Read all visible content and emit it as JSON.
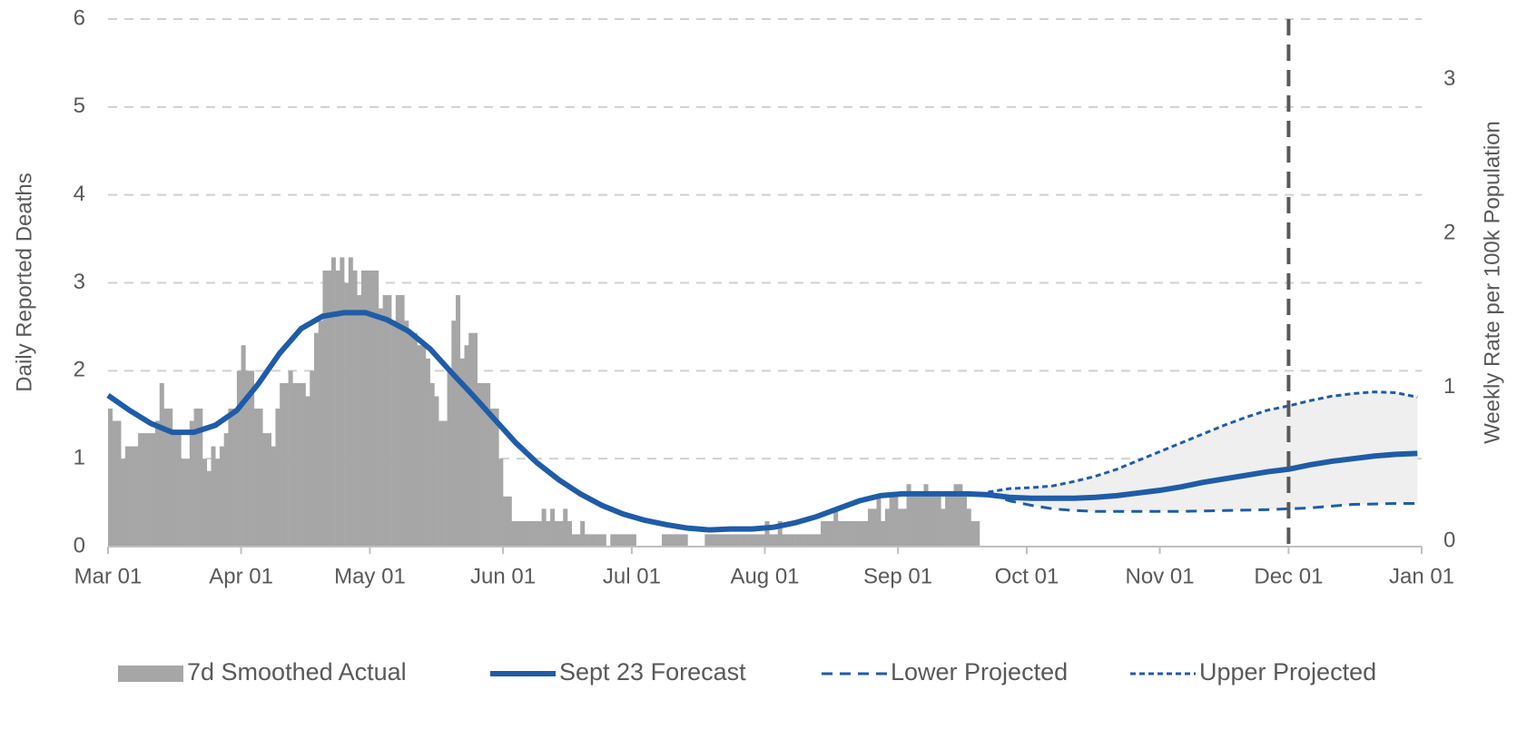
{
  "chart_data": {
    "type": "bar-line",
    "ylabel": "Daily Reported Deaths",
    "y2label": "Weekly Rate per 100k Population",
    "xlim": [
      0,
      306
    ],
    "xticks": [
      {
        "value": 0,
        "label": "Mar 01"
      },
      {
        "value": 31,
        "label": "Apr 01"
      },
      {
        "value": 61,
        "label": "May 01"
      },
      {
        "value": 92,
        "label": "Jun 01"
      },
      {
        "value": 122,
        "label": "Jul 01"
      },
      {
        "value": 153,
        "label": "Aug 01"
      },
      {
        "value": 184,
        "label": "Sep 01"
      },
      {
        "value": 214,
        "label": "Oct 01"
      },
      {
        "value": 245,
        "label": "Nov 01"
      },
      {
        "value": 275,
        "label": "Dec 01"
      },
      {
        "value": 306,
        "label": "Jan 01"
      }
    ],
    "ylim": [
      0,
      6
    ],
    "yticks": [
      0,
      1,
      2,
      3,
      4,
      5,
      6
    ],
    "y2lim": [
      0,
      3.43
    ],
    "y2ticks": [
      0,
      1,
      2,
      3
    ],
    "grid": true,
    "vline": 275,
    "legend": "bottom",
    "series": [
      {
        "name": "7d Smoothed Actual",
        "kind": "bar",
        "color": "#a6a6a6",
        "x": [
          0,
          1,
          2,
          3,
          4,
          5,
          6,
          7,
          8,
          9,
          10,
          11,
          12,
          13,
          14,
          15,
          16,
          17,
          18,
          19,
          20,
          21,
          22,
          23,
          24,
          25,
          26,
          27,
          28,
          29,
          30,
          31,
          32,
          33,
          34,
          35,
          36,
          37,
          38,
          39,
          40,
          41,
          42,
          43,
          44,
          45,
          46,
          47,
          48,
          49,
          50,
          51,
          52,
          53,
          54,
          55,
          56,
          57,
          58,
          59,
          60,
          61,
          62,
          63,
          64,
          65,
          66,
          67,
          68,
          69,
          70,
          71,
          72,
          73,
          74,
          75,
          76,
          77,
          78,
          79,
          80,
          81,
          82,
          83,
          84,
          85,
          86,
          87,
          88,
          89,
          90,
          91,
          92,
          93,
          94,
          95,
          96,
          97,
          98,
          99,
          100,
          101,
          102,
          103,
          104,
          105,
          106,
          107,
          108,
          109,
          110,
          111,
          112,
          113,
          114,
          115,
          116,
          117,
          118,
          119,
          120,
          121,
          122,
          123,
          124,
          125,
          126,
          127,
          128,
          129,
          130,
          131,
          132,
          133,
          134,
          135,
          136,
          137,
          138,
          139,
          140,
          141,
          142,
          143,
          144,
          145,
          146,
          147,
          148,
          149,
          150,
          151,
          152,
          153,
          154,
          155,
          156,
          157,
          158,
          159,
          160,
          161,
          162,
          163,
          164,
          165,
          166,
          167,
          168,
          169,
          170,
          171,
          172,
          173,
          174,
          175,
          176,
          177,
          178,
          179,
          180,
          181,
          182,
          183,
          184,
          185,
          186,
          187,
          188,
          189,
          190,
          191,
          192,
          193,
          194,
          195,
          196,
          197,
          198,
          199,
          200,
          201,
          202
        ],
        "values": [
          1.57,
          1.43,
          1.43,
          1.0,
          1.14,
          1.14,
          1.14,
          1.29,
          1.29,
          1.29,
          1.29,
          1.43,
          1.86,
          1.57,
          1.57,
          1.29,
          1.29,
          1.0,
          1.0,
          1.43,
          1.57,
          1.57,
          1.0,
          0.86,
          1.14,
          1.0,
          1.14,
          1.29,
          1.57,
          1.57,
          2.0,
          2.29,
          2.0,
          2.0,
          1.57,
          1.57,
          1.29,
          1.29,
          1.14,
          1.57,
          1.86,
          1.86,
          2.0,
          1.86,
          1.86,
          1.86,
          1.71,
          2.0,
          2.43,
          2.57,
          3.14,
          3.14,
          3.29,
          3.14,
          3.29,
          3.0,
          3.29,
          3.14,
          2.86,
          3.14,
          3.14,
          3.14,
          3.14,
          2.71,
          2.86,
          2.86,
          2.57,
          2.86,
          2.86,
          2.57,
          2.43,
          2.43,
          2.29,
          2.29,
          2.14,
          1.86,
          1.71,
          1.43,
          1.43,
          2.0,
          2.57,
          2.86,
          2.14,
          2.29,
          2.43,
          2.43,
          1.86,
          1.86,
          1.86,
          1.57,
          1.57,
          1.0,
          0.57,
          0.57,
          0.29,
          0.29,
          0.29,
          0.29,
          0.29,
          0.29,
          0.29,
          0.43,
          0.29,
          0.43,
          0.29,
          0.29,
          0.43,
          0.29,
          0.14,
          0.14,
          0.29,
          0.14,
          0.14,
          0.14,
          0.14,
          0.14,
          0,
          0.14,
          0.14,
          0.14,
          0.14,
          0.14,
          0.14,
          0,
          0,
          0,
          0,
          0,
          0,
          0.14,
          0.14,
          0.14,
          0.14,
          0.14,
          0.14,
          0,
          0,
          0,
          0,
          0.14,
          0.14,
          0.14,
          0.14,
          0.14,
          0.14,
          0.14,
          0.14,
          0.14,
          0.14,
          0.14,
          0.14,
          0.14,
          0.14,
          0.29,
          0.14,
          0.14,
          0.29,
          0.14,
          0.14,
          0.14,
          0.14,
          0.14,
          0.14,
          0.14,
          0.14,
          0.14,
          0.29,
          0.29,
          0.29,
          0.43,
          0.29,
          0.29,
          0.29,
          0.29,
          0.29,
          0.29,
          0.29,
          0.43,
          0.43,
          0.57,
          0.29,
          0.43,
          0.57,
          0.57,
          0.43,
          0.43,
          0.71,
          0.57,
          0.57,
          0.57,
          0.71,
          0.57,
          0.57,
          0.57,
          0.43,
          0.57,
          0.57,
          0.71,
          0.71,
          0.57,
          0.43,
          0.29,
          0.29
        ]
      },
      {
        "name": "Sept 23 Forecast",
        "kind": "line",
        "color": "#1f5ca8",
        "dash": "solid",
        "x": [
          0,
          5,
          10,
          15,
          20,
          25,
          30,
          35,
          40,
          45,
          50,
          55,
          60,
          65,
          70,
          75,
          80,
          85,
          90,
          95,
          100,
          105,
          110,
          115,
          120,
          125,
          130,
          135,
          140,
          145,
          150,
          155,
          160,
          165,
          170,
          175,
          180,
          185,
          190,
          195,
          200,
          205,
          210,
          215,
          220,
          225,
          230,
          235,
          240,
          245,
          250,
          255,
          260,
          265,
          270,
          275,
          280,
          285,
          290,
          295,
          300,
          305
        ],
        "values": [
          1.72,
          1.55,
          1.4,
          1.3,
          1.3,
          1.38,
          1.55,
          1.85,
          2.2,
          2.48,
          2.62,
          2.66,
          2.66,
          2.58,
          2.45,
          2.25,
          1.98,
          1.72,
          1.45,
          1.18,
          0.95,
          0.76,
          0.6,
          0.47,
          0.37,
          0.3,
          0.25,
          0.21,
          0.19,
          0.2,
          0.2,
          0.22,
          0.27,
          0.34,
          0.43,
          0.52,
          0.58,
          0.6,
          0.6,
          0.6,
          0.6,
          0.59,
          0.56,
          0.55,
          0.55,
          0.55,
          0.56,
          0.58,
          0.61,
          0.64,
          0.68,
          0.73,
          0.77,
          0.81,
          0.85,
          0.88,
          0.93,
          0.97,
          1.0,
          1.03,
          1.05,
          1.06
        ]
      },
      {
        "name": "Lower Projected",
        "kind": "line",
        "color": "#1f5ca8",
        "dash": "long",
        "x": [
          205,
          210,
          215,
          220,
          225,
          230,
          240,
          250,
          260,
          270,
          275,
          280,
          290,
          300,
          305
        ],
        "values": [
          0.6,
          0.52,
          0.47,
          0.43,
          0.41,
          0.4,
          0.4,
          0.4,
          0.41,
          0.42,
          0.43,
          0.44,
          0.48,
          0.49,
          0.49
        ]
      },
      {
        "name": "Upper Projected",
        "kind": "line",
        "color": "#1f5ca8",
        "dash": "short",
        "x": [
          205,
          210,
          215,
          220,
          225,
          230,
          235,
          240,
          245,
          250,
          255,
          260,
          265,
          270,
          275,
          280,
          285,
          290,
          295,
          300,
          305
        ],
        "values": [
          0.62,
          0.66,
          0.67,
          0.69,
          0.74,
          0.8,
          0.88,
          0.98,
          1.08,
          1.18,
          1.28,
          1.38,
          1.47,
          1.55,
          1.6,
          1.66,
          1.71,
          1.74,
          1.76,
          1.75,
          1.7
        ]
      }
    ]
  }
}
